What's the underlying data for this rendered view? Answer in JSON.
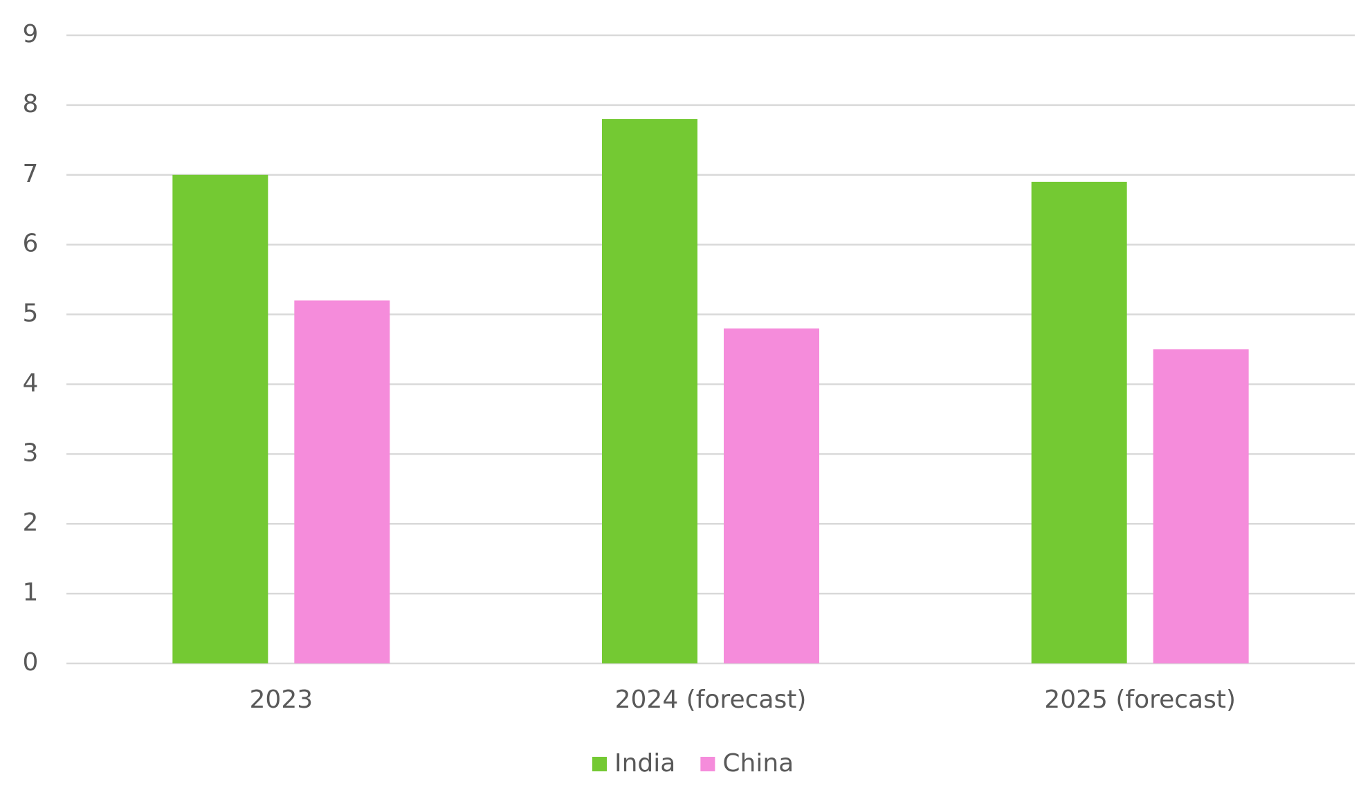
{
  "chart_data": {
    "type": "bar",
    "categories": [
      "2023",
      "2024 (forecast)",
      "2025 (forecast)"
    ],
    "series": [
      {
        "name": "India",
        "color": "#74c933",
        "values": [
          7,
          7.8,
          6.9
        ]
      },
      {
        "name": "China",
        "color": "#f58cdb",
        "values": [
          5.2,
          4.8,
          4.5
        ]
      }
    ],
    "ylim": [
      0,
      9
    ],
    "yticks": [
      0,
      1,
      2,
      3,
      4,
      5,
      6,
      7,
      8,
      9
    ],
    "grid": true,
    "legend": "bottom"
  }
}
